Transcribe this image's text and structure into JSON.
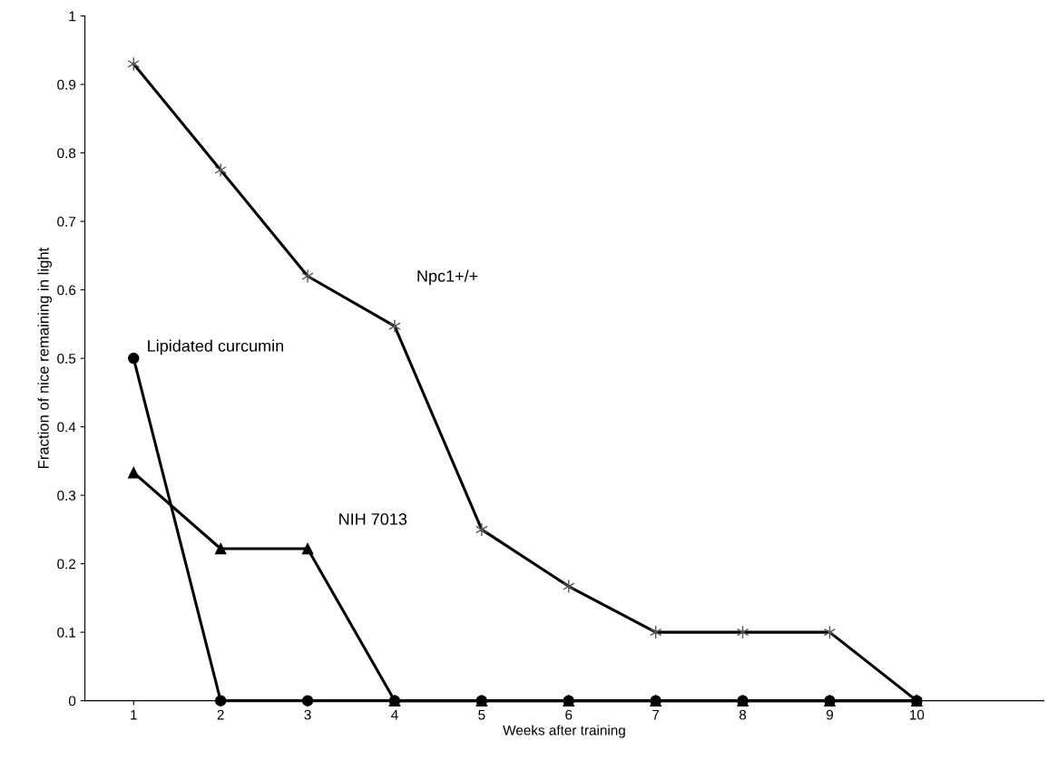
{
  "chart_data": {
    "type": "line",
    "xlabel": "Weeks after training",
    "ylabel": "Fraction of nice remaining in light",
    "categories": [
      "1",
      "2",
      "3",
      "4",
      "5",
      "6",
      "7",
      "8",
      "9",
      "10"
    ],
    "ylim": [
      0,
      1
    ],
    "yticks": [
      0,
      0.1,
      0.2,
      0.3,
      0.4,
      0.5,
      0.6,
      0.7,
      0.8,
      0.9,
      1
    ],
    "grid": false,
    "legend": false,
    "line_style": "solid",
    "series": [
      {
        "name": "Npc1+/+",
        "color": "#000000",
        "marker": "cross",
        "values": [
          0.93,
          0.775,
          0.62,
          0.547,
          0.25,
          0.167,
          0.1,
          0.1,
          0.1,
          0
        ]
      },
      {
        "name": "NIH 7013",
        "color": "#000000",
        "marker": "triangle",
        "values": [
          0.333,
          0.222,
          0.222,
          0,
          0,
          0,
          0,
          0,
          0,
          0
        ]
      },
      {
        "name": "Lipidated curcumin",
        "color": "#000000",
        "marker": "circle",
        "values": [
          0.5,
          0,
          0,
          0,
          0,
          0,
          0,
          0,
          0,
          0
        ]
      }
    ]
  }
}
